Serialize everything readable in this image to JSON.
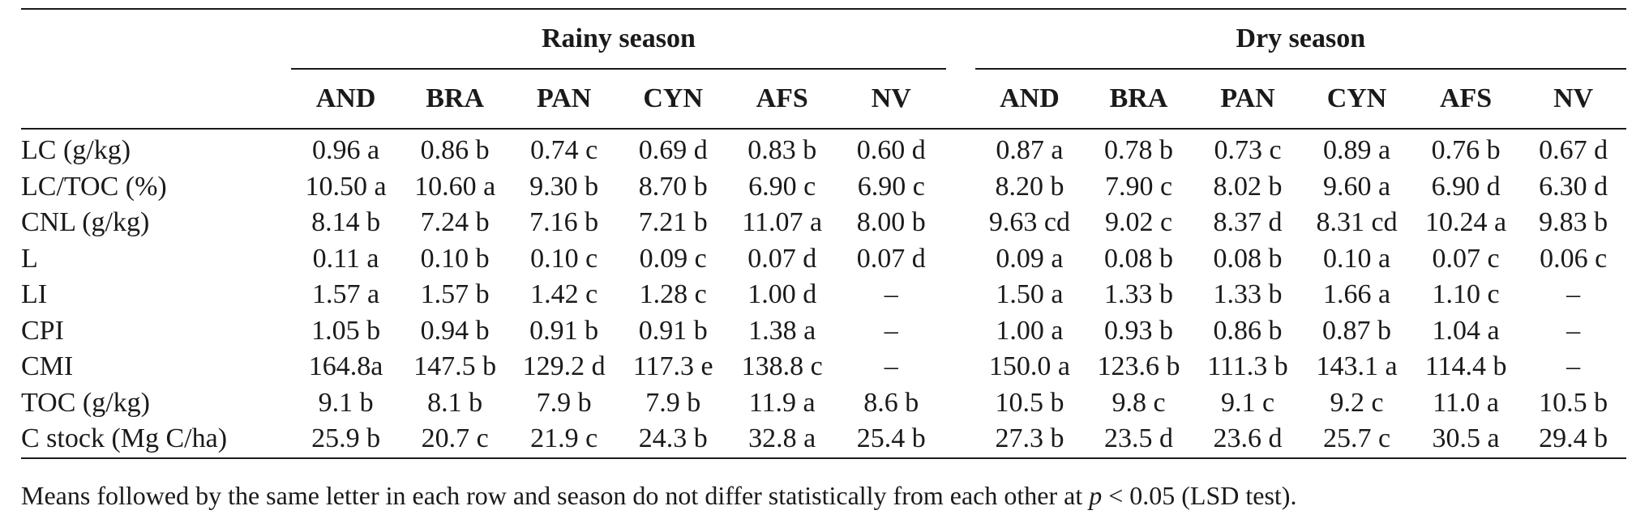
{
  "table": {
    "groups": [
      {
        "label": "Rainy season"
      },
      {
        "label": "Dry season"
      }
    ],
    "rainy_columns": [
      "AND",
      "BRA",
      "PAN",
      "CYN",
      "AFS",
      "NV"
    ],
    "dry_columns": [
      "AND",
      "BRA",
      "PAN",
      "CYN",
      "AFS",
      "NV"
    ],
    "rows": [
      {
        "label": "LC (g/kg)",
        "rainy": [
          "0.96 a",
          "0.86 b",
          "0.74 c",
          "0.69 d",
          "0.83 b",
          "0.60 d"
        ],
        "dry": [
          "0.87 a",
          "0.78 b",
          "0.73 c",
          "0.89 a",
          "0.76 b",
          "0.67 d"
        ]
      },
      {
        "label": "LC/TOC (%)",
        "rainy": [
          "10.50 a",
          "10.60 a",
          "9.30 b",
          "8.70 b",
          "6.90 c",
          "6.90 c"
        ],
        "dry": [
          "8.20 b",
          "7.90 c",
          "8.02 b",
          "9.60 a",
          "6.90 d",
          "6.30 d"
        ]
      },
      {
        "label": "CNL (g/kg)",
        "rainy": [
          "8.14 b",
          "7.24 b",
          "7.16 b",
          "7.21 b",
          "11.07 a",
          "8.00 b"
        ],
        "dry": [
          "9.63 cd",
          "9.02 c",
          "8.37 d",
          "8.31 cd",
          "10.24 a",
          "9.83 b"
        ]
      },
      {
        "label": "L",
        "rainy": [
          "0.11 a",
          "0.10 b",
          "0.10 c",
          "0.09 c",
          "0.07 d",
          "0.07 d"
        ],
        "dry": [
          "0.09 a",
          "0.08 b",
          "0.08 b",
          "0.10 a",
          "0.07 c",
          "0.06 c"
        ]
      },
      {
        "label": "LI",
        "rainy": [
          "1.57 a",
          "1.57 b",
          "1.42 c",
          "1.28 c",
          "1.00 d",
          "–"
        ],
        "dry": [
          "1.50 a",
          "1.33 b",
          "1.33 b",
          "1.66 a",
          "1.10 c",
          "–"
        ]
      },
      {
        "label": "CPI",
        "rainy": [
          "1.05 b",
          "0.94 b",
          "0.91 b",
          "0.91 b",
          "1.38 a",
          "–"
        ],
        "dry": [
          "1.00 a",
          "0.93 b",
          "0.86 b",
          "0.87 b",
          "1.04 a",
          "–"
        ]
      },
      {
        "label": "CMI",
        "rainy": [
          "164.8a",
          "147.5 b",
          "129.2 d",
          "117.3 e",
          "138.8 c",
          "–"
        ],
        "dry": [
          "150.0 a",
          "123.6 b",
          "111.3 b",
          "143.1 a",
          "114.4 b",
          "–"
        ]
      },
      {
        "label": "TOC (g/kg)",
        "rainy": [
          "9.1 b",
          "8.1 b",
          "7.9 b",
          "7.9 b",
          "11.9 a",
          "8.6 b"
        ],
        "dry": [
          "10.5 b",
          "9.8 c",
          "9.1 c",
          "9.2 c",
          "11.0 a",
          "10.5 b"
        ]
      },
      {
        "label": "C stock (Mg C/ha)",
        "rainy": [
          "25.9 b",
          "20.7 c",
          "21.9 c",
          "24.3 b",
          "32.8 a",
          "25.4 b"
        ],
        "dry": [
          "27.3 b",
          "23.5 d",
          "23.6 d",
          "25.7 c",
          "30.5 a",
          "29.4 b"
        ]
      }
    ]
  },
  "footnote": {
    "before": "Means followed by the same letter in each row and season do not differ statistically from each other at ",
    "italic": "p",
    "after": " < 0.05 (LSD test)."
  }
}
